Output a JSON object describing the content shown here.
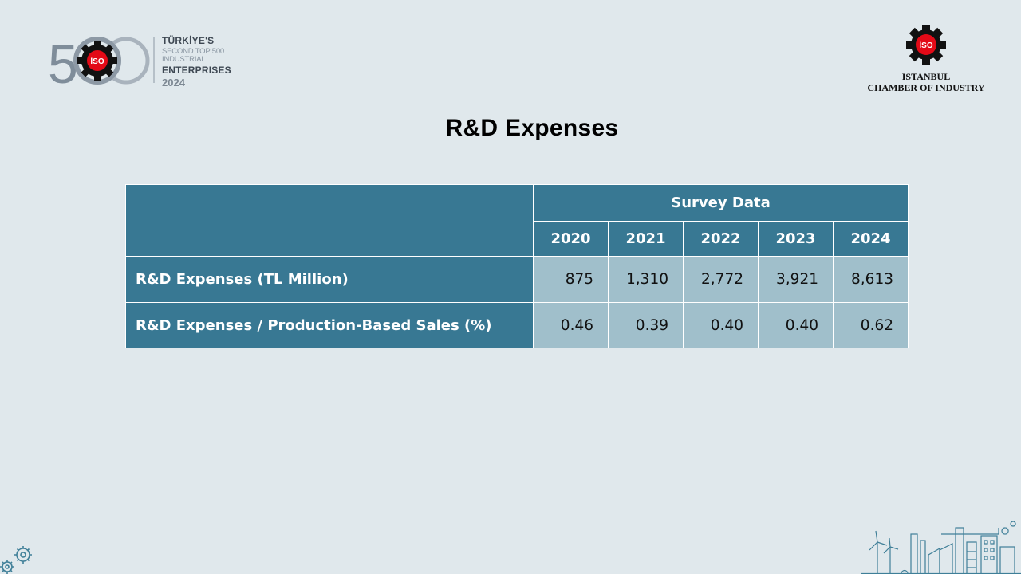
{
  "header_left": {
    "logo_number": "500",
    "line1": "TÜRKİYE'S",
    "line2": "SECOND TOP 500 INDUSTRIAL",
    "line3": "ENTERPRISES",
    "year": "2024",
    "badge": "İSO"
  },
  "header_right": {
    "badge": "İSO",
    "name_line1": "ISTANBUL",
    "name_line2": "CHAMBER OF INDUSTRY"
  },
  "title": "R&D Expenses",
  "table": {
    "group_header": "Survey Data",
    "years": [
      "2020",
      "2021",
      "2022",
      "2023",
      "2024"
    ],
    "rows": [
      {
        "label": "R&D Expenses (TL Million)",
        "values": [
          "875",
          "1,310",
          "2,772",
          "3,921",
          "8,613"
        ]
      },
      {
        "label": "R&D Expenses / Production-Based Sales (%)",
        "values": [
          "0.46",
          "0.39",
          "0.40",
          "0.40",
          "0.62"
        ]
      }
    ]
  },
  "colors": {
    "background": "#e0e8ec",
    "header_fill": "#387893",
    "value_fill": "#a0bfcb",
    "logo_red": "#e30a17"
  },
  "icons": [
    "gear-logo-icon",
    "gears-decoration-icon",
    "factory-skyline-illustration"
  ]
}
